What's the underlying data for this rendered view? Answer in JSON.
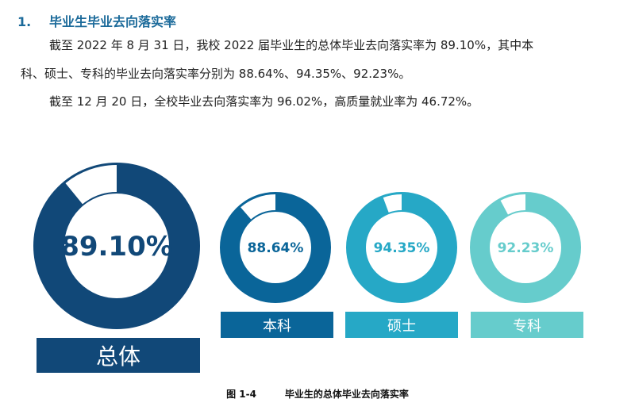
{
  "heading": {
    "number": "1.",
    "title": "毕业生毕业去向落实率"
  },
  "paragraphs": [
    "截至 2022 年 8 月 31 日，我校 2022 届毕业生的总体毕业去向落实率为 89.10%，其中本",
    "科、硕士、专科的毕业去向落实率分别为 88.64%、94.35%、92.23%。",
    "截至 12 月 20 日，全校毕业去向落实率为 96.02%，高质量就业率为 46.72%。"
  ],
  "chart_data": {
    "type": "donut",
    "categories": [
      "总体",
      "本科",
      "硕士",
      "专科"
    ],
    "values": [
      89.1,
      88.64,
      94.35,
      92.23
    ],
    "labels": [
      "89.10%",
      "88.64%",
      "94.35%",
      "92.23%"
    ],
    "colors": [
      "#114878",
      "#0a6599",
      "#26a8c6",
      "#66cccc"
    ]
  },
  "caption": {
    "figure": "图 1-4",
    "title": "毕业生的总体毕业去向落实率"
  }
}
